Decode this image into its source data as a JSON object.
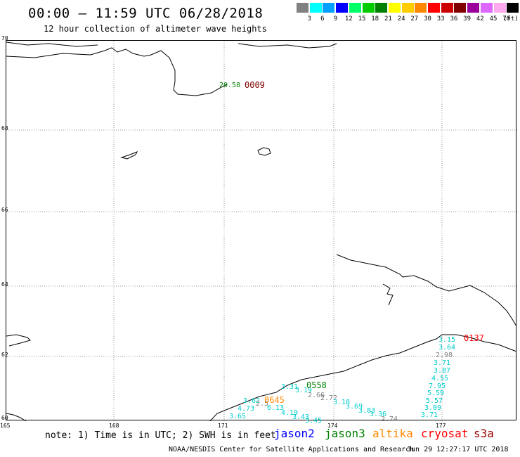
{
  "header": {
    "title": "00:00 – 11:59 UTC 06/28/2018",
    "subtitle": "12 hour collection of altimeter wave heights"
  },
  "legend": {
    "unit": "(ft)",
    "bins": [
      {
        "label": "3",
        "color": "#808080"
      },
      {
        "label": "6",
        "color": "#00ffff"
      },
      {
        "label": "9",
        "color": "#00a0ff"
      },
      {
        "label": "12",
        "color": "#0000ff"
      },
      {
        "label": "15",
        "color": "#00ff66"
      },
      {
        "label": "18",
        "color": "#00cc00"
      },
      {
        "label": "21",
        "color": "#008000"
      },
      {
        "label": "24",
        "color": "#ffff00"
      },
      {
        "label": "27",
        "color": "#ffcc00"
      },
      {
        "label": "30",
        "color": "#ff8800"
      },
      {
        "label": "33",
        "color": "#ff0000"
      },
      {
        "label": "36",
        "color": "#cc0000"
      },
      {
        "label": "39",
        "color": "#800000"
      },
      {
        "label": "42",
        "color": "#990099"
      },
      {
        "label": "45",
        "color": "#dd66ff"
      },
      {
        "label": "70",
        "color": "#ffaaee"
      },
      {
        "label": "",
        "color": "#000000"
      }
    ]
  },
  "map": {
    "lat_labels": [
      "70",
      "68",
      "66",
      "64",
      "62",
      "60"
    ],
    "lon_labels": [
      "165",
      "168",
      "171",
      "174",
      "177"
    ],
    "observations": [
      {
        "text": "20.58",
        "color": "#008000"
      },
      {
        "text": "3.15",
        "color": "#00cccc"
      },
      {
        "text": "3.64",
        "color": "#00cccc"
      },
      {
        "text": "2.98",
        "color": "#808080"
      },
      {
        "text": "3.71",
        "color": "#00cccc"
      },
      {
        "text": "3.87",
        "color": "#00cccc"
      },
      {
        "text": "4.55",
        "color": "#00cccc"
      },
      {
        "text": "7.95",
        "color": "#00cccc"
      },
      {
        "text": "5.59",
        "color": "#00cccc"
      },
      {
        "text": "5.57",
        "color": "#00cccc"
      },
      {
        "text": "3.09",
        "color": "#00cccc"
      },
      {
        "text": "3.71",
        "color": "#00cccc"
      },
      {
        "text": "3.31",
        "color": "#00cccc"
      },
      {
        "text": "3.19",
        "color": "#00cccc"
      },
      {
        "text": "2.66",
        "color": "#808080"
      },
      {
        "text": "2.72",
        "color": "#808080"
      },
      {
        "text": "3.18",
        "color": "#00cccc"
      },
      {
        "text": "3.69",
        "color": "#00cccc"
      },
      {
        "text": "3.83",
        "color": "#00cccc"
      },
      {
        "text": "3.36",
        "color": "#00cccc"
      },
      {
        "text": "2.74",
        "color": "#808080"
      },
      {
        "text": "3.62",
        "color": "#00cccc"
      },
      {
        "text": "2.5",
        "color": "#808080"
      },
      {
        "text": "6.13",
        "color": "#00cccc"
      },
      {
        "text": "4.73",
        "color": "#00cccc"
      },
      {
        "text": "4.19",
        "color": "#00cccc"
      },
      {
        "text": "3.43",
        "color": "#00cccc"
      },
      {
        "text": "3.65",
        "color": "#00cccc"
      },
      {
        "text": "3.45",
        "color": "#00cccc"
      }
    ],
    "passes": [
      {
        "text": "0009",
        "color": "#800000"
      },
      {
        "text": "0137",
        "color": "#ff0000"
      },
      {
        "text": "0558",
        "color": "#008000"
      },
      {
        "text": "0645",
        "color": "#ff8800"
      }
    ]
  },
  "footer": {
    "note": "note: 1) Time is in UTC; 2) SWH is in feet",
    "satellites": [
      {
        "name": "jason2",
        "color": "#0000ff"
      },
      {
        "name": "jason3",
        "color": "#008000"
      },
      {
        "name": "altika",
        "color": "#ff8800"
      },
      {
        "name": "cryosat",
        "color": "#ff0000"
      },
      {
        "name": "s3a",
        "color": "#990000"
      }
    ],
    "credit": "NOAA/NESDIS Center for Satellite Applications and Research",
    "timestamp": "Jun 29 12:27:17 UTC 2018"
  }
}
